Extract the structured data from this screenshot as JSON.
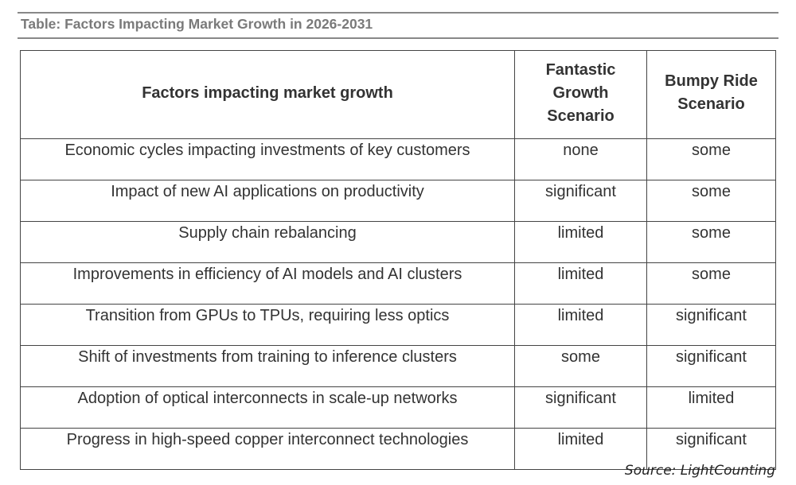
{
  "title": "Table: Factors Impacting Market Growth in 2026-2031",
  "table": {
    "headers": [
      "Factors impacting market growth",
      "Fantastic Growth Scenario",
      "Bumpy Ride Scenario"
    ],
    "rows": [
      [
        "Economic cycles impacting investments of key customers",
        "none",
        "some"
      ],
      [
        "Impact of new AI applications on productivity",
        "significant",
        "some"
      ],
      [
        "Supply chain rebalancing",
        "limited",
        "some"
      ],
      [
        "Improvements in efficiency of AI models and AI clusters",
        "limited",
        "some"
      ],
      [
        "Transition from GPUs to TPUs, requiring less optics",
        "limited",
        "significant"
      ],
      [
        "Shift of investments from training to inference clusters",
        "some",
        "significant"
      ],
      [
        "Adoption of optical interconnects in scale-up networks",
        "significant",
        "limited"
      ],
      [
        "Progress in high-speed copper interconnect technologies",
        "limited",
        "significant"
      ]
    ]
  },
  "source": "Source: LightCounting"
}
